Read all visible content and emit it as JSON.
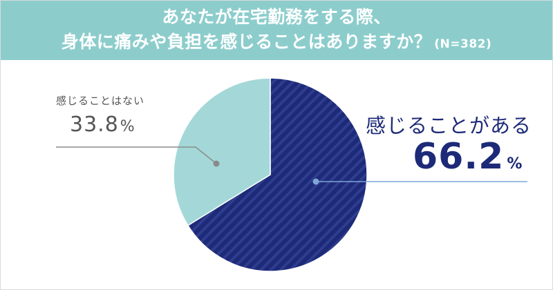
{
  "title": {
    "line1": "あなたが在宅勤務をする際、",
    "line2": "身体に痛みや負担を感じることはありますか？",
    "n_label": "(N=382)"
  },
  "colors": {
    "header_bg": "#8ccdcc",
    "yes_base": "#1d2a78",
    "yes_stripe": "#2f3d8f",
    "no": "#a4d8d8",
    "leader_no": "#8a8a8a",
    "leader_yes": "#7fa6d6"
  },
  "chart_data": {
    "type": "pie",
    "slices": [
      {
        "label": "感じることがある",
        "value": 66.2,
        "value_text": "66.2",
        "unit": "%"
      },
      {
        "label": "感じることはない",
        "value": 33.8,
        "value_text": "33.8",
        "unit": "%"
      }
    ]
  }
}
